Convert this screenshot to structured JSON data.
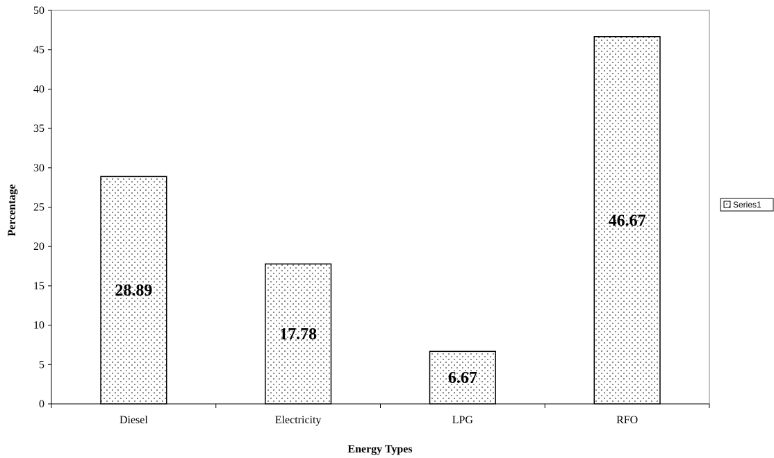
{
  "chart_data": {
    "type": "bar",
    "categories": [
      "Diesel",
      "Electricity",
      "LPG",
      "RFO"
    ],
    "series": [
      {
        "name": "Series1",
        "values": [
          28.89,
          17.78,
          6.67,
          46.67
        ]
      }
    ],
    "data_labels": [
      "28.89",
      "17.78",
      "6.67",
      "46.67"
    ],
    "title": "",
    "xlabel": "Energy Types",
    "ylabel": "Percentage",
    "ylim": [
      0,
      50
    ],
    "yticks": [
      0,
      5,
      10,
      15,
      20,
      25,
      30,
      35,
      40,
      45,
      50
    ],
    "grid": false,
    "legend": "right",
    "bar_fill": "dotted",
    "colors": {
      "bar_stroke": "#000000",
      "bar_fill": "#ffffff",
      "dots": "#000000"
    }
  }
}
